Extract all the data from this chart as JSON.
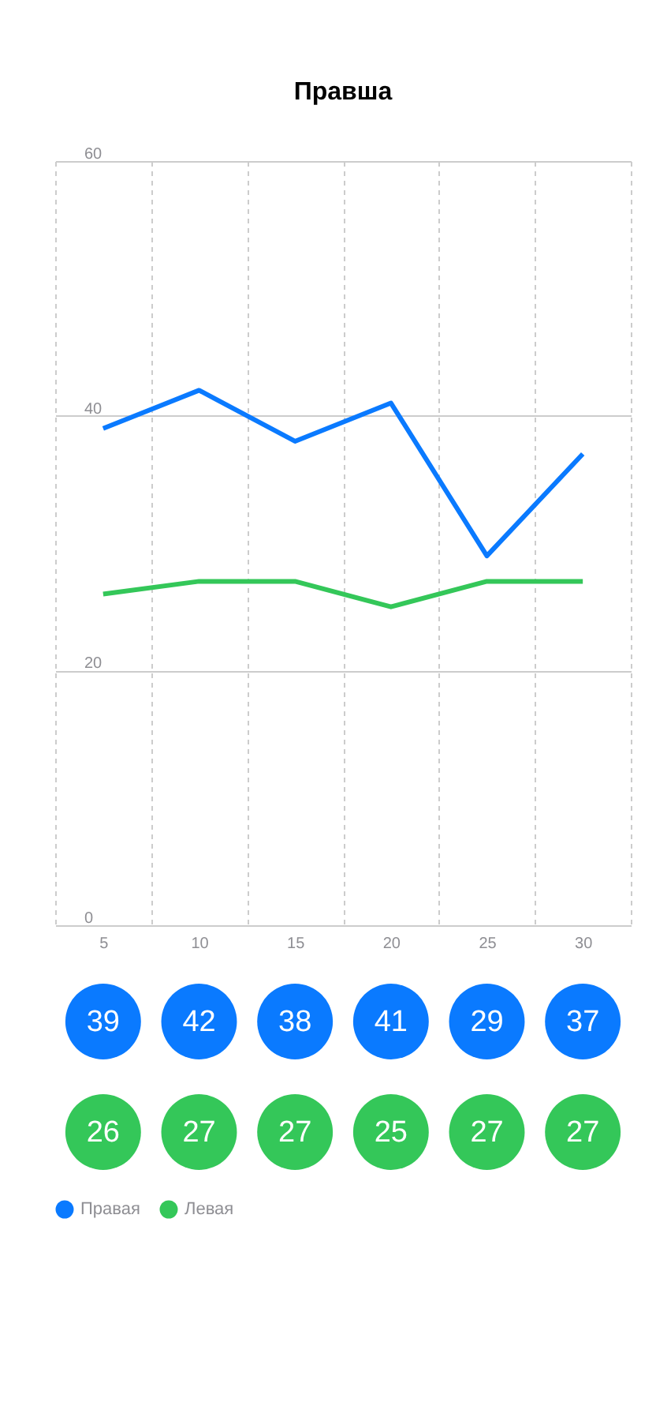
{
  "chart_data": {
    "type": "line",
    "title": "Правша",
    "categories": [
      "5",
      "10",
      "15",
      "20",
      "25",
      "30"
    ],
    "series": [
      {
        "name": "Правая",
        "color": "#0a7aff",
        "values": [
          39,
          42,
          38,
          41,
          29,
          37
        ]
      },
      {
        "name": "Левая",
        "color": "#34c759",
        "values": [
          26,
          27,
          27,
          25,
          27,
          27
        ]
      }
    ],
    "ylim": [
      0,
      60
    ],
    "yticks": [
      0,
      20,
      40,
      60
    ],
    "grid": true,
    "legend": "bottom left",
    "data_labels": true,
    "marker": "none",
    "line_style": "solid"
  }
}
